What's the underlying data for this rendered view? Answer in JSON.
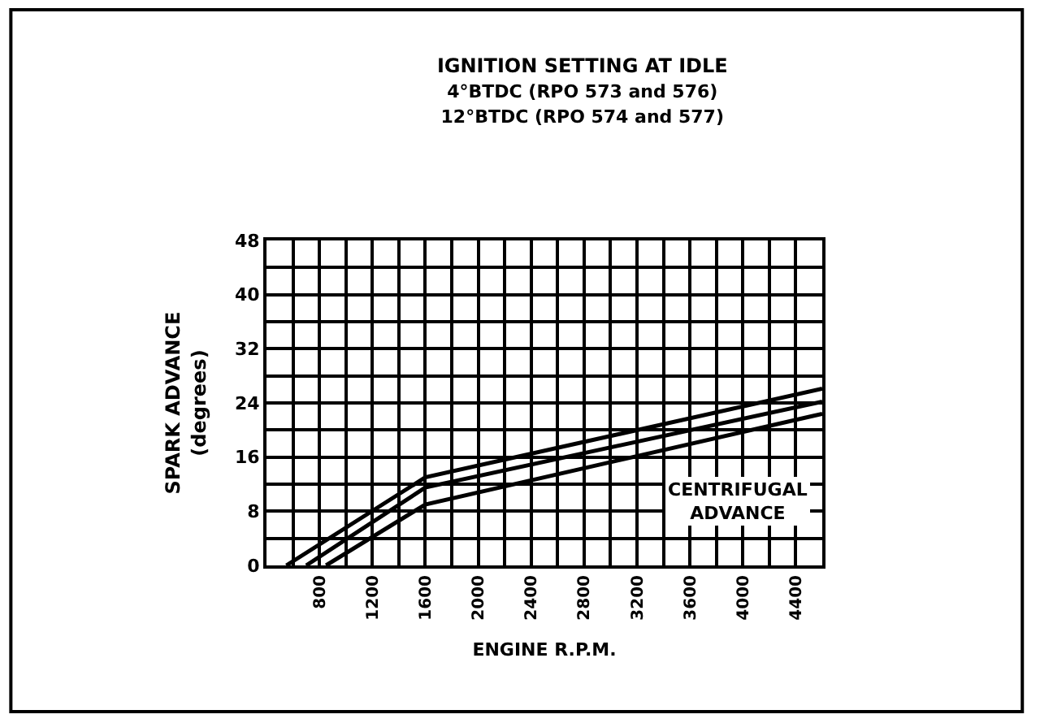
{
  "chart_data": {
    "type": "line",
    "title": "IGNITION SETTING AT IDLE",
    "subtitle": "4°BTDC (RPO 573 and 576)\n12°BTDC (RPO 574 and 577)",
    "xlabel": "ENGINE R.P.M.",
    "ylabel": "SPARK ADVANCE\n(degrees)",
    "series": [
      {
        "color": "#000000",
        "x": [
          550,
          1600,
          4600
        ],
        "values": [
          0,
          13,
          26.1
        ]
      },
      {
        "color": "#000000",
        "x": [
          700,
          1600,
          4600
        ],
        "values": [
          0,
          11.5,
          24.2
        ]
      },
      {
        "color": "#000000",
        "x": [
          850,
          1600,
          4600
        ],
        "values": [
          0,
          9,
          22.4
        ]
      }
    ],
    "xlim": [
      400,
      4600
    ],
    "xticks": [
      {
        "value": 400,
        "label": null
      },
      {
        "value": 600,
        "label": null
      },
      800,
      {
        "value": 1000,
        "label": null
      },
      1200,
      {
        "value": 1400,
        "label": null
      },
      1600,
      {
        "value": 1800,
        "label": null
      },
      2000,
      {
        "value": 2200,
        "label": null
      },
      2400,
      {
        "value": 2600,
        "label": null
      },
      2800,
      {
        "value": 3000,
        "label": null
      },
      3200,
      {
        "value": 3400,
        "label": null
      },
      3600,
      {
        "value": 3800,
        "label": null
      },
      4000,
      {
        "value": 4200,
        "label": null
      },
      4400,
      {
        "value": 4600,
        "label": null
      }
    ],
    "ylim": [
      0,
      48
    ],
    "yticks": [
      0,
      {
        "value": 4,
        "label": null
      },
      8,
      {
        "value": 12,
        "label": null
      },
      16,
      {
        "value": 20,
        "label": null
      },
      24,
      {
        "value": 28,
        "label": null
      },
      32,
      {
        "value": 36,
        "label": null
      },
      40,
      {
        "value": 44,
        "label": null
      },
      48
    ],
    "annotations": [
      "CENTRIFUGAL\nADVANCE"
    ],
    "grid": true,
    "marker": "none",
    "line_style": "solid"
  }
}
